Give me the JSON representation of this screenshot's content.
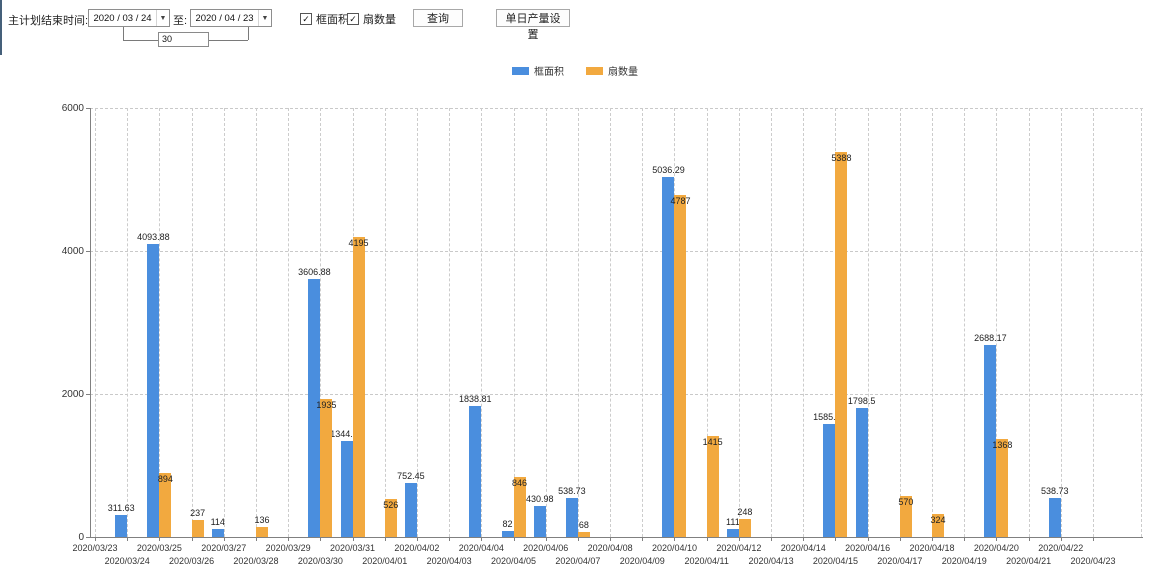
{
  "toolbar": {
    "plan_end_label": "主计划结束时间:",
    "date_from": "2020 / 03 / 24",
    "to_label": "至:",
    "date_to": "2020 / 04 / 23",
    "interval_value": "30",
    "checkbox_frame_area": "框面积",
    "checkbox_fan_count": "扇数量",
    "checkbox_frame_area_checked": "✓",
    "checkbox_fan_count_checked": "✓",
    "query_button": "查询",
    "daily_output_button": "单日产量设置"
  },
  "chart_data": {
    "type": "bar",
    "title": "",
    "xlabel": "",
    "ylabel": "",
    "ylim": [
      0,
      6000
    ],
    "yticks": [
      0,
      2000,
      4000,
      6000
    ],
    "grid": true,
    "legend_position": "top",
    "categories": [
      "2020/03/23",
      "2020/03/24",
      "2020/03/25",
      "2020/03/26",
      "2020/03/27",
      "2020/03/28",
      "2020/03/29",
      "2020/03/30",
      "2020/03/31",
      "2020/04/01",
      "2020/04/02",
      "2020/04/03",
      "2020/04/04",
      "2020/04/05",
      "2020/04/06",
      "2020/04/07",
      "2020/04/08",
      "2020/04/09",
      "2020/04/10",
      "2020/04/11",
      "2020/04/12",
      "2020/04/13",
      "2020/04/14",
      "2020/04/15",
      "2020/04/16",
      "2020/04/17",
      "2020/04/18",
      "2020/04/19",
      "2020/04/20",
      "2020/04/21",
      "2020/04/22",
      "2020/04/23"
    ],
    "series": [
      {
        "name": "框面积",
        "color": "#4a8ede",
        "values": [
          null,
          311.63,
          4093.88,
          null,
          114,
          null,
          null,
          3606.88,
          1344.95,
          null,
          752.45,
          null,
          1838.81,
          82,
          430.98,
          538.73,
          null,
          null,
          5036.29,
          null,
          111,
          null,
          null,
          1585.96,
          1798.5,
          null,
          null,
          null,
          2688.17,
          null,
          538.73,
          null
        ]
      },
      {
        "name": "扇数量",
        "color": "#f2a93f",
        "values": [
          null,
          null,
          894,
          237,
          null,
          136,
          null,
          1935,
          4195,
          526,
          null,
          null,
          null,
          846,
          null,
          68,
          null,
          null,
          4787,
          1415,
          248,
          null,
          null,
          5388,
          null,
          570,
          324,
          null,
          1368,
          null,
          null,
          null
        ]
      }
    ]
  }
}
